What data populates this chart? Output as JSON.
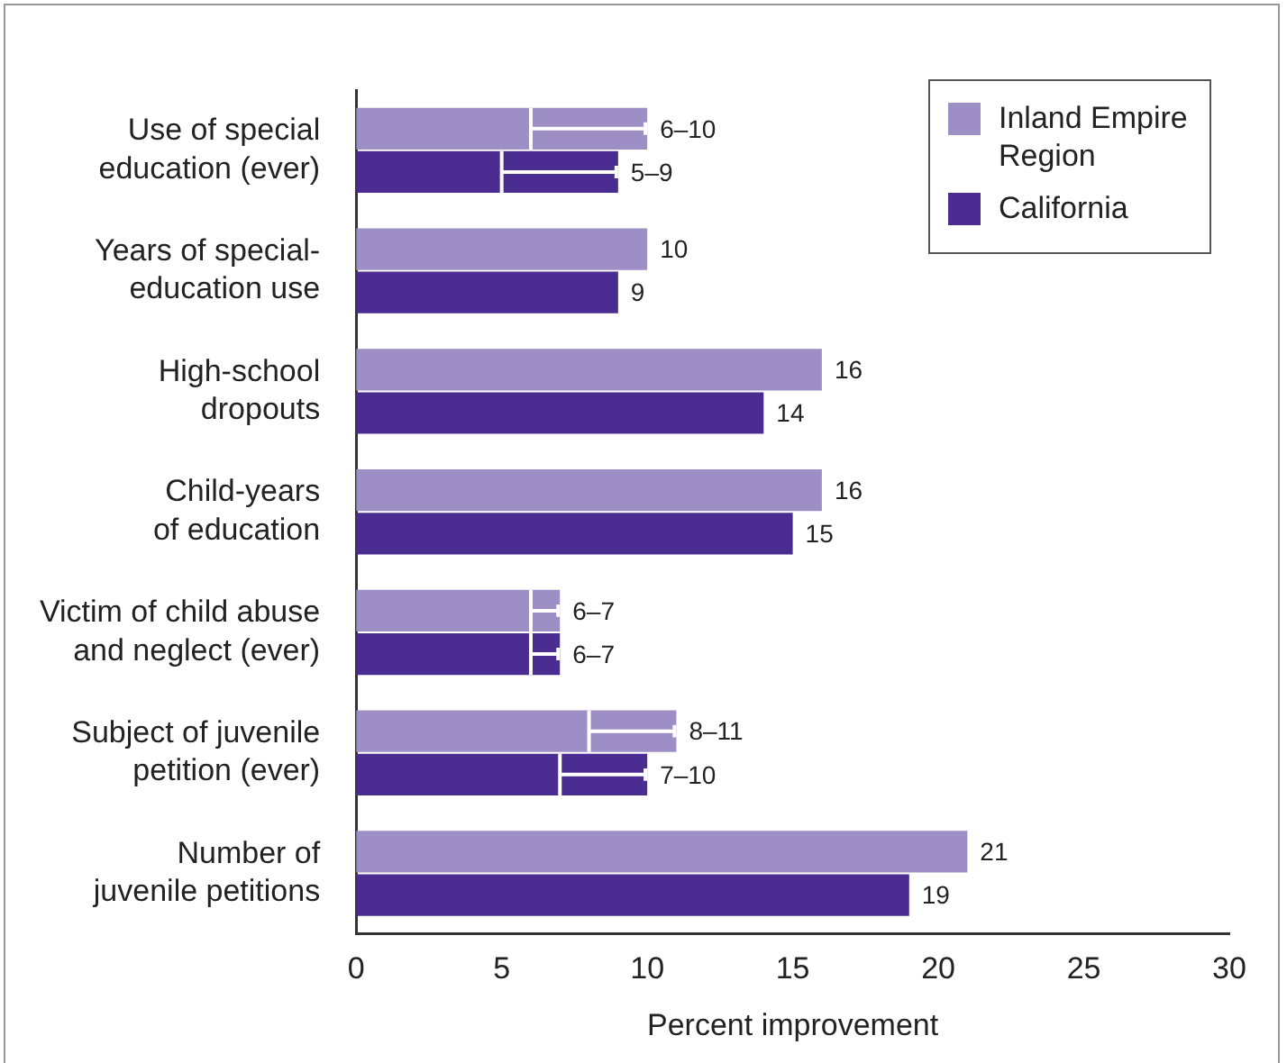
{
  "chart_data": {
    "type": "bar",
    "orientation": "horizontal",
    "xlabel": "Percent improvement",
    "categories": [
      "Use of special\neducation (ever)",
      "Years of special-\neducation use",
      "High-school\ndropouts",
      "Child-years\nof education",
      "Victim of child abuse\nand neglect (ever)",
      "Subject of juvenile\npetition (ever)",
      "Number of\njuvenile petitions"
    ],
    "series": [
      {
        "name": "Inland Empire\nRegion",
        "color": "#9d8fc6",
        "values": [
          10,
          10,
          16,
          16,
          7,
          11,
          21
        ],
        "errors": [
          [
            6,
            10
          ],
          null,
          null,
          null,
          [
            6,
            7
          ],
          [
            8,
            11
          ],
          null
        ],
        "value_labels": [
          "6–10",
          "10",
          "16",
          "16",
          "6–7",
          "8–11",
          "21"
        ]
      },
      {
        "name": "California",
        "color": "#4b2c91",
        "values": [
          9,
          9,
          14,
          15,
          7,
          10,
          19
        ],
        "errors": [
          [
            5,
            9
          ],
          null,
          null,
          null,
          [
            6,
            7
          ],
          [
            7,
            10
          ],
          null
        ],
        "value_labels": [
          "5–9",
          "9",
          "14",
          "15",
          "6–7",
          "7–10",
          "19"
        ]
      }
    ],
    "xlim": [
      0,
      30
    ],
    "xticks": [
      0,
      5,
      10,
      15,
      20,
      25,
      30
    ],
    "grid": false,
    "legend": "top right"
  }
}
